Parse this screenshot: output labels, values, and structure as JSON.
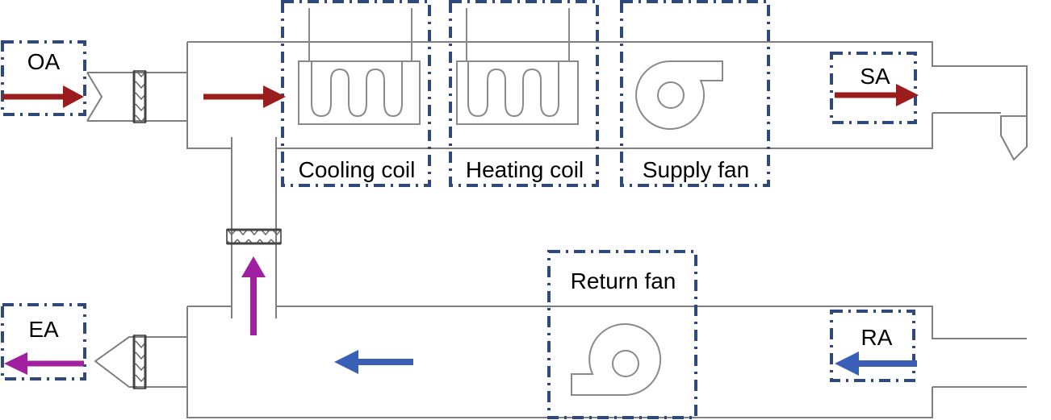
{
  "colors": {
    "box_outline": "#2f4a7a",
    "duct_line": "#7f7f7f",
    "outdoor_supply_arrow": "#9b1c1c",
    "exhaust_arrow": "#a020a0",
    "return_arrow": "#3a5fb6"
  },
  "labels": {
    "oa": "OA",
    "sa": "SA",
    "ea": "EA",
    "ra": "RA",
    "cooling_coil": "Cooling coil",
    "heating_coil": "Heating coil",
    "supply_fan": "Supply fan",
    "return_fan": "Return fan"
  },
  "icons": [
    "coil-icon",
    "fan-icon",
    "damper-icon",
    "arrow-icon"
  ]
}
